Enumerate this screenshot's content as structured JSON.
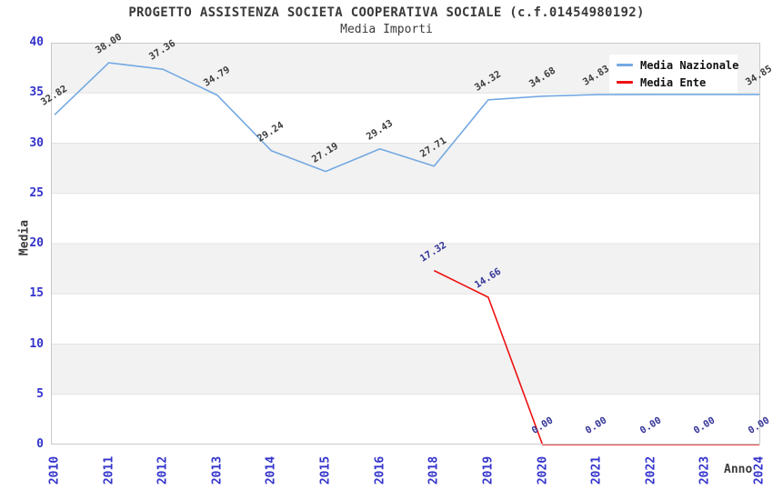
{
  "header": {
    "title": "PROGETTO ASSISTENZA SOCIETA COOPERATIVA SOCIALE (c.f.01454980192)",
    "subtitle": "Media Importi"
  },
  "colors": {
    "nazionale_line": "#74a9e2",
    "ente_line": "#ee1111",
    "axis_tick_blue": "#3333cc",
    "label_dark_gray": "#3c3c3c",
    "label_navy": "#333399",
    "band_gray": "#f2f2f2",
    "band_white": "#ffffff",
    "band_separator": "#e3e3e3",
    "plot_border": "#c8c8c8",
    "text_dark": "#3a3a3a"
  },
  "legend": {
    "items": [
      {
        "label": "Media Nazionale",
        "color": "#74a9e2"
      },
      {
        "label": "Media Ente",
        "color": "#ee1111"
      }
    ]
  },
  "axes": {
    "y_label": "Media",
    "x_label": "Anno",
    "y_ticks": [
      0,
      5,
      10,
      15,
      20,
      25,
      30,
      35,
      40
    ],
    "x_ticks": [
      "2010",
      "2011",
      "2012",
      "2013",
      "2014",
      "2015",
      "2016",
      "2018",
      "2019",
      "2020",
      "2021",
      "2022",
      "2023",
      "2024"
    ]
  },
  "chart_data": {
    "type": "line",
    "title": "PROGETTO ASSISTENZA SOCIETA COOPERATIVA SOCIALE (c.f.01454980192)",
    "subtitle": "Media Importi",
    "xlabel": "Anno",
    "ylabel": "Media",
    "ylim": [
      0,
      40
    ],
    "grid": "horizontal-bands",
    "legend_position": "top-right-inside",
    "categories": [
      "2010",
      "2011",
      "2012",
      "2013",
      "2014",
      "2015",
      "2016",
      "2018",
      "2019",
      "2020",
      "2021",
      "2022",
      "2023",
      "2024"
    ],
    "series": [
      {
        "name": "Media Nazionale",
        "color": "#74a9e2",
        "label_color": "#3c3c3c",
        "values": [
          32.82,
          38.0,
          37.36,
          34.79,
          29.24,
          27.19,
          29.43,
          27.71,
          34.32,
          34.68,
          34.83,
          34.85,
          34.85,
          34.85
        ],
        "labels": [
          "32.82",
          "38.00",
          "37.36",
          "34.79",
          "29.24",
          "27.19",
          "29.43",
          "27.71",
          "34.32",
          "34.68",
          "34.83",
          "34.85",
          "34.85",
          "34.85"
        ]
      },
      {
        "name": "Media Ente",
        "color": "#ee1111",
        "label_color": "#333399",
        "values": [
          null,
          null,
          null,
          null,
          null,
          null,
          null,
          17.32,
          14.66,
          0.0,
          0.0,
          0.0,
          0.0,
          0.0
        ],
        "labels": [
          "",
          "",
          "",
          "",
          "",
          "",
          "",
          "17.32",
          "14.66",
          "0.00",
          "0.00",
          "0.00",
          "0.00",
          "0.00"
        ]
      }
    ]
  }
}
